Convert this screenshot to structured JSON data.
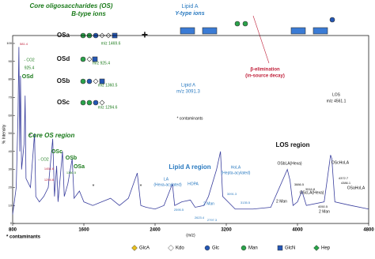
{
  "chart_data": {
    "type": "line",
    "ylabel": "% Intensity",
    "xlabel": "(m/z)",
    "x": [
      800,
      840,
      860,
      870,
      880,
      888,
      900,
      930,
      940,
      950,
      1000,
      1046,
      1060,
      1100,
      1150,
      1200,
      1250,
      1270,
      1294,
      1310,
      1360,
      1380,
      1420,
      1469,
      1490,
      1550,
      1600,
      1700,
      1800,
      1900,
      2000,
      2100,
      2200,
      2240,
      2300,
      2400,
      2500,
      2595,
      2620,
      2700,
      2797,
      2850,
      2950,
      3000,
      3091,
      3135,
      3160,
      3300,
      3500,
      3700,
      3886,
      3916,
      3950,
      4000,
      4050,
      4100,
      4300,
      4372,
      4386,
      4420,
      4600,
      4800
    ],
    "series": [
      {
        "color": "#3a3f9e",
        "values": [
          5,
          20,
          60,
          98,
          40,
          82,
          30,
          45,
          71,
          25,
          20,
          50,
          15,
          12,
          15,
          20,
          47,
          15,
          32,
          12,
          40,
          15,
          22,
          36,
          14,
          18,
          12,
          10,
          12,
          14,
          10,
          14,
          28,
          10,
          9,
          8,
          10,
          22,
          10,
          12,
          13,
          9,
          10,
          15,
          30,
          40,
          15,
          8,
          8,
          9,
          30,
          24,
          10,
          12,
          18,
          10,
          12,
          38,
          36,
          12,
          10,
          8
        ]
      }
    ],
    "xlim": [
      800,
      4800
    ],
    "xticks": [
      800,
      1600,
      2400,
      3200,
      4000,
      4800
    ],
    "ylim": [
      0,
      100
    ],
    "yticks": [
      0,
      10,
      20,
      30,
      40,
      50,
      60,
      70,
      80,
      90,
      100
    ],
    "annotations": [
      "Core oligosaccharides (OS)",
      "B-type ions",
      "OSa",
      "OSd",
      "OSb",
      "OSc",
      "m/z 1469.6",
      "m/z 925.4",
      "m/z 1360.5",
      "m/z 1294.6",
      "+",
      "Lipid A",
      "Y-type ions",
      "Lipid A",
      "m/z 3091.3",
      "β-elimination",
      "(in-source decay)",
      "LOS",
      "m/z 4561.1",
      "581.4",
      "- CO2",
      "925.4",
      "OSd",
      "*",
      "Core OS region",
      "OSc",
      "- CO2",
      "OSb",
      "OSa",
      "1451.6",
      "1360.5",
      "1294.6",
      "*",
      "*",
      "Lipid A region",
      "LA",
      "(Hexa-acylated)",
      "HOPA",
      "HoLA",
      "(Hepta-acylated)",
      "3091.3",
      "3135.5",
      "2595.5",
      "2623.4",
      "2 Man",
      "2797.3",
      "LOS region",
      "OSbLA(Hexa)",
      "3886.5",
      "3916.8",
      "2 Man",
      "OScLA(Hexa)",
      "4050.5",
      "OScHoLA",
      "4372.7",
      "4386.1",
      "OSaHoLA",
      "2 Man",
      "* contaminants"
    ],
    "legend": [
      "GlcA",
      "Kdo",
      "Glc",
      "Man",
      "GlcN",
      "Hep"
    ]
  }
}
